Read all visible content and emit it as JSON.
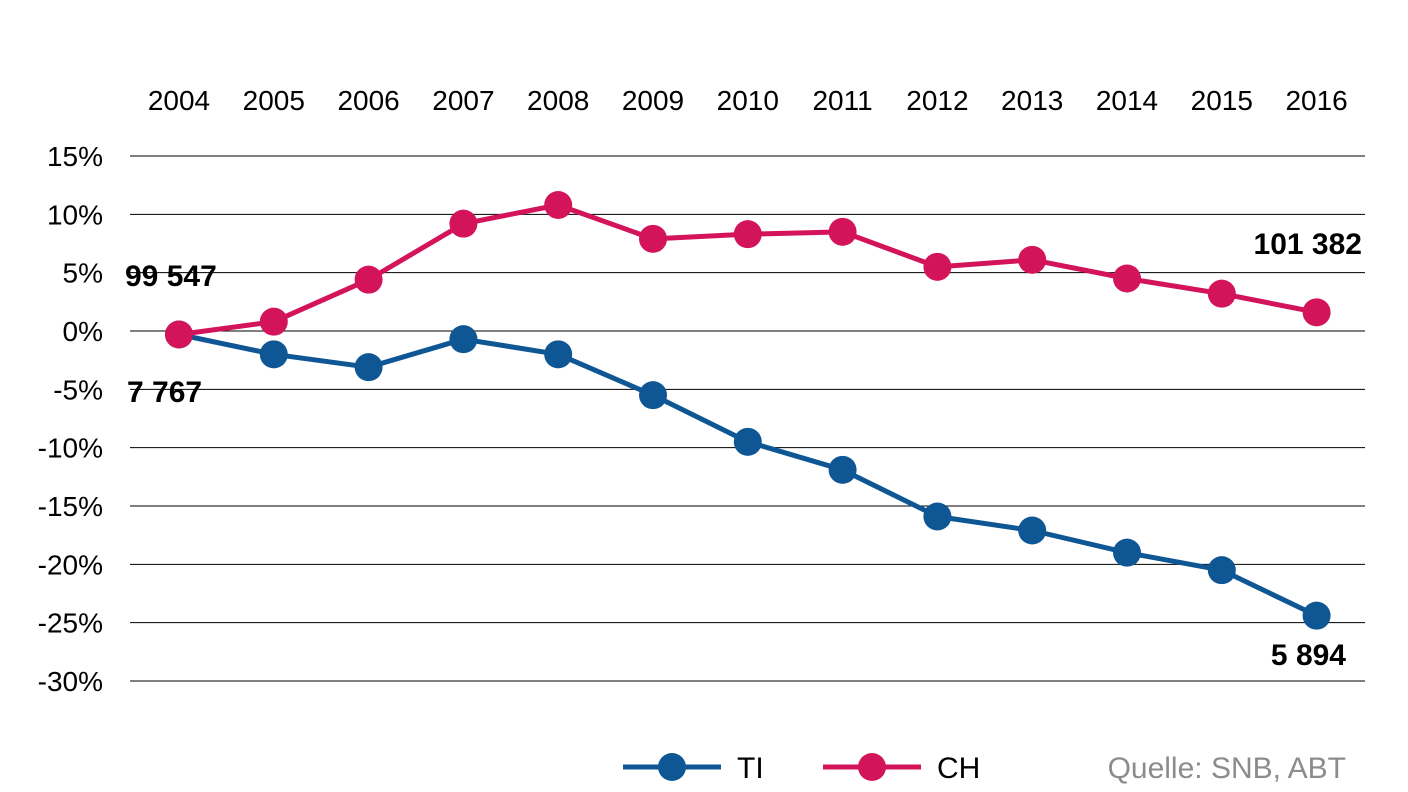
{
  "chart_data": {
    "type": "line",
    "x": [
      "2004",
      "2005",
      "2006",
      "2007",
      "2008",
      "2009",
      "2010",
      "2011",
      "2012",
      "2013",
      "2014",
      "2015",
      "2016"
    ],
    "ylim": [
      -30,
      15
    ],
    "yticks": [
      "15%",
      "10%",
      "5%",
      "0%",
      "-5%",
      "-10%",
      "-15%",
      "-20%",
      "-25%",
      "-30%"
    ],
    "ytick_values": [
      15,
      10,
      5,
      0,
      -5,
      -10,
      -15,
      -20,
      -25,
      -30
    ],
    "grid": true,
    "legend_position": "bottom",
    "series": [
      {
        "name": "TI",
        "color": "#0f5694",
        "values": [
          -0.3,
          -2.0,
          -3.1,
          -0.7,
          -2.0,
          -5.5,
          -9.5,
          -11.9,
          -15.9,
          -17.1,
          -19.0,
          -20.5,
          -24.4
        ]
      },
      {
        "name": "CH",
        "color": "#d4145a",
        "values": [
          -0.3,
          0.8,
          4.4,
          9.2,
          10.8,
          7.9,
          8.3,
          8.5,
          5.5,
          6.1,
          4.5,
          3.2,
          1.6
        ]
      }
    ],
    "annotations": [
      {
        "id": "ch-start",
        "text": "99 547"
      },
      {
        "id": "ti-start",
        "text": "7 767"
      },
      {
        "id": "ch-end",
        "text": "101 382"
      },
      {
        "id": "ti-end",
        "text": "5 894"
      }
    ],
    "source": "Quelle: SNB, ABT"
  }
}
